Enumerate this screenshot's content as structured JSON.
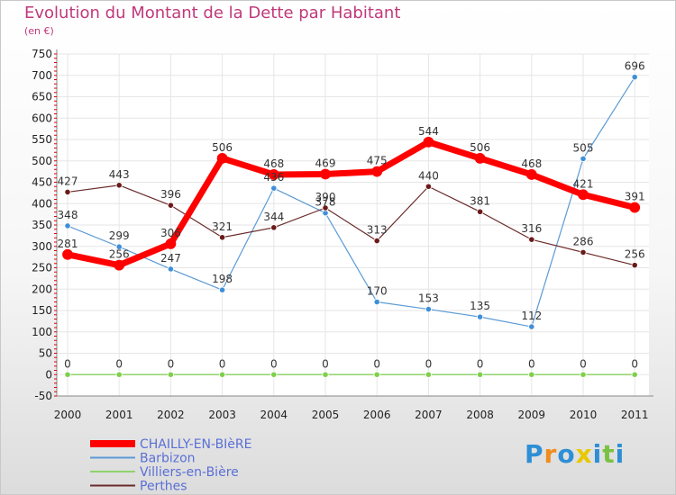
{
  "header": {
    "title": "Evolution du Montant de la Dette par Habitant",
    "unit": "(en €)"
  },
  "logo": {
    "text": "Proxiti",
    "colors": [
      "#2d8fd5",
      "#f08c1e",
      "#2d8fd5",
      "#e8c800",
      "#2d8fd5",
      "#7ac142",
      "#2d8fd5"
    ]
  },
  "chart_data": {
    "type": "line",
    "x": [
      "2000",
      "2001",
      "2002",
      "2003",
      "2004",
      "2005",
      "2006",
      "2007",
      "2008",
      "2009",
      "2010",
      "2011"
    ],
    "ylim": [
      -50,
      750
    ],
    "yticks": [
      -50,
      0,
      50,
      100,
      150,
      200,
      250,
      300,
      350,
      400,
      450,
      500,
      550,
      600,
      650,
      700,
      750
    ],
    "grid": true,
    "legend": "bottom-left",
    "series": [
      {
        "name": "CHAILLY-EN-BIèRE",
        "color": "#ff0000",
        "values": [
          281,
          256,
          306,
          506,
          468,
          469,
          475,
          544,
          506,
          468,
          421,
          391
        ]
      },
      {
        "name": "Barbizon",
        "color": "#5b9bd5",
        "values": [
          348,
          299,
          247,
          198,
          436,
          378,
          170,
          153,
          135,
          112,
          505,
          696
        ]
      },
      {
        "name": "Villiers-en-Bière",
        "color": "#8fd36b",
        "values": [
          0,
          0,
          0,
          0,
          0,
          0,
          0,
          0,
          0,
          0,
          0,
          0
        ]
      },
      {
        "name": "Perthes",
        "color": "#6b2a2a",
        "values": [
          427,
          443,
          396,
          321,
          344,
          390,
          313,
          440,
          381,
          316,
          286,
          256
        ]
      }
    ],
    "point_labels": [
      {
        "series": "CHAILLY-EN-BIèRE",
        "labels": [
          "281",
          "256",
          "306",
          "506",
          "468",
          "469",
          "475",
          "544",
          "506",
          "468",
          "421",
          "391"
        ]
      },
      {
        "series": "Barbizon",
        "labels": [
          "348",
          "299",
          "247",
          "198",
          "436",
          "378",
          "170",
          "153",
          "135",
          "112",
          "505",
          "696"
        ]
      },
      {
        "series": "Villiers-en-Bière",
        "labels": [
          "0",
          "0",
          "0",
          "0",
          "0",
          "0",
          "0",
          "0",
          "0",
          "0",
          "0",
          "0"
        ]
      },
      {
        "series": "Perthes",
        "labels": [
          "427",
          "443",
          "396",
          "321",
          "344",
          "390",
          "313",
          "440",
          "381",
          "316",
          "286",
          "256"
        ]
      }
    ]
  }
}
